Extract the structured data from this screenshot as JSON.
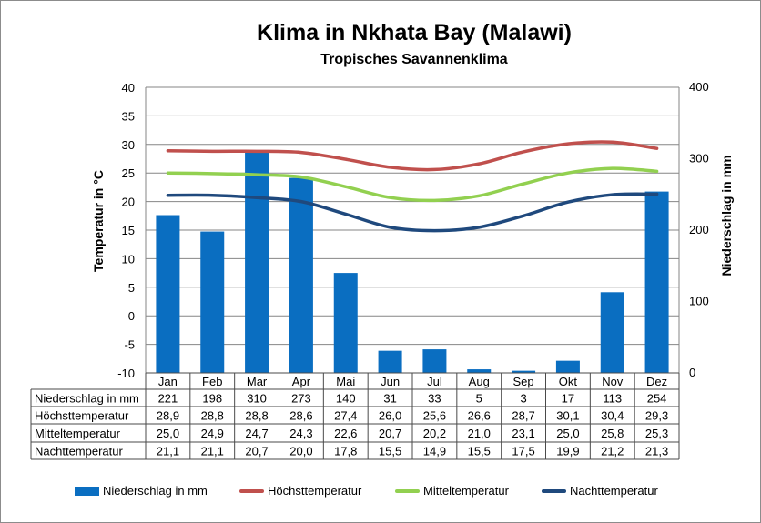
{
  "title": "Klima in Nkhata Bay (Malawi)",
  "subtitle": "Tropisches Savannenklima",
  "chart_data": {
    "type": "bar+line",
    "categories": [
      "Jan",
      "Feb",
      "Mar",
      "Apr",
      "Mai",
      "Jun",
      "Jul",
      "Aug",
      "Sep",
      "Okt",
      "Nov",
      "Dez"
    ],
    "y_left": {
      "label": "Temperatur in °C",
      "min": -10,
      "max": 40,
      "step": 5
    },
    "y_right": {
      "label": "Niederschlag in mm",
      "min": 0,
      "max": 400,
      "step": 100
    },
    "grid": true,
    "legend_position": "bottom",
    "series": [
      {
        "name": "Niederschlag in mm",
        "type": "bar",
        "axis": "right",
        "color": "#0a6ec1",
        "values": [
          221,
          198,
          310,
          273,
          140,
          31,
          33,
          5,
          3,
          17,
          113,
          254
        ],
        "labels": [
          "221",
          "198",
          "310",
          "273",
          "140",
          "31",
          "33",
          "5",
          "3",
          "17",
          "113",
          "254"
        ]
      },
      {
        "name": "Höchsttemperatur",
        "type": "line",
        "axis": "left",
        "color": "#c0504d",
        "values": [
          28.9,
          28.8,
          28.8,
          28.6,
          27.4,
          26.0,
          25.6,
          26.6,
          28.7,
          30.1,
          30.4,
          29.3
        ],
        "labels": [
          "28,9",
          "28,8",
          "28,8",
          "28,6",
          "27,4",
          "26,0",
          "25,6",
          "26,6",
          "28,7",
          "30,1",
          "30,4",
          "29,3"
        ]
      },
      {
        "name": "Mitteltemperatur",
        "type": "line",
        "axis": "left",
        "color": "#92d050",
        "values": [
          25.0,
          24.9,
          24.7,
          24.3,
          22.6,
          20.7,
          20.2,
          21.0,
          23.1,
          25.0,
          25.8,
          25.3
        ],
        "labels": [
          "25,0",
          "24,9",
          "24,7",
          "24,3",
          "22,6",
          "20,7",
          "20,2",
          "21,0",
          "23,1",
          "25,0",
          "25,8",
          "25,3"
        ]
      },
      {
        "name": "Nachttemperatur",
        "type": "line",
        "axis": "left",
        "color": "#1f497d",
        "values": [
          21.1,
          21.1,
          20.7,
          20.0,
          17.8,
          15.5,
          14.9,
          15.5,
          17.5,
          19.9,
          21.2,
          21.3
        ],
        "labels": [
          "21,1",
          "21,1",
          "20,7",
          "20,0",
          "17,8",
          "15,5",
          "14,9",
          "15,5",
          "17,5",
          "19,9",
          "21,2",
          "21,3"
        ]
      }
    ]
  }
}
